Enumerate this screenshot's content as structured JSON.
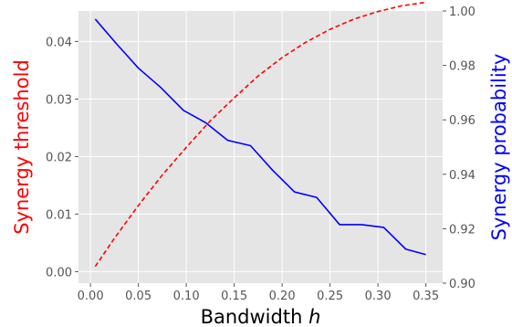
{
  "chart_data": {
    "type": "line",
    "title": "",
    "xlabel": "Bandwidth",
    "xlabel_var": "h",
    "ylabel_left": "Synergy threshold",
    "ylabel_right": "Synergy probability",
    "xlim": [
      -0.0125,
      0.3675
    ],
    "ylim_left": [
      -0.002,
      0.0453
    ],
    "ylim_right": [
      0.9,
      1.0
    ],
    "xticks": [
      0.0,
      0.05,
      0.1,
      0.15,
      0.2,
      0.25,
      0.3,
      0.35
    ],
    "xtick_labels": [
      "0.00",
      "0.05",
      "0.10",
      "0.15",
      "0.20",
      "0.25",
      "0.30",
      "0.35"
    ],
    "yticks_left": [
      0.0,
      0.01,
      0.02,
      0.03,
      0.04
    ],
    "ytick_labels_left": [
      "0.00",
      "0.01",
      "0.02",
      "0.03",
      "0.04"
    ],
    "yticks_right": [
      0.9,
      0.92,
      0.94,
      0.96,
      0.98,
      1.0
    ],
    "ytick_labels_right": [
      "0.90",
      "0.92",
      "0.94",
      "0.96",
      "0.98",
      "1.00"
    ],
    "grid": true,
    "legend": "none",
    "colors": {
      "background": "#e5e5e5",
      "grid": "#ffffff",
      "threshold": "#ff0000",
      "probability": "#0000ff",
      "ticks": "#555555"
    },
    "series": [
      {
        "axis": "left",
        "style": "dashed",
        "color": "#ff0000",
        "x": [
          0.005,
          0.025,
          0.05,
          0.075,
          0.1,
          0.125,
          0.15,
          0.175,
          0.2,
          0.225,
          0.25,
          0.275,
          0.3,
          0.325,
          0.35
        ],
        "values": [
          0.0009,
          0.0058,
          0.0115,
          0.0168,
          0.0216,
          0.0262,
          0.0302,
          0.034,
          0.0372,
          0.0399,
          0.0421,
          0.0439,
          0.0452,
          0.0462,
          0.0468
        ]
      },
      {
        "axis": "right",
        "style": "solid",
        "color": "#0000ff",
        "x": [
          0.005,
          0.027,
          0.05,
          0.073,
          0.097,
          0.12,
          0.143,
          0.167,
          0.19,
          0.213,
          0.236,
          0.26,
          0.283,
          0.306,
          0.329,
          0.35
        ],
        "values": [
          0.997,
          0.988,
          0.979,
          0.972,
          0.9635,
          0.959,
          0.9525,
          0.9505,
          0.9415,
          0.9335,
          0.9315,
          0.9215,
          0.9215,
          0.9205,
          0.9125,
          0.9105
        ]
      }
    ]
  }
}
